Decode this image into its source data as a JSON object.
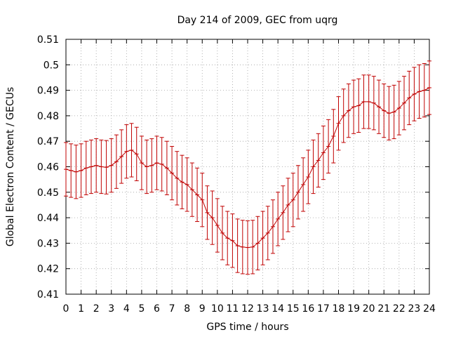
{
  "chart_data": {
    "type": "line",
    "title": "Day 214 of 2009, GEC from uqrg",
    "xlabel": "GPS time / hours",
    "ylabel": "Global Electron Content / GECUs",
    "xlim": [
      0,
      24
    ],
    "ylim": [
      0.41,
      0.51
    ],
    "x_ticks": [
      "0",
      "1",
      "2",
      "3",
      "4",
      "5",
      "6",
      "7",
      "8",
      "9",
      "10",
      "11",
      "12",
      "13",
      "14",
      "15",
      "16",
      "17",
      "18",
      "19",
      "20",
      "21",
      "22",
      "23",
      "24"
    ],
    "y_ticks": [
      "0.41",
      "0.42",
      "0.43",
      "0.44",
      "0.45",
      "0.46",
      "0.47",
      "0.48",
      "0.49",
      "0.5",
      "0.51"
    ],
    "grid": true,
    "series_color": "#c00000",
    "error": 0.0105,
    "x": [
      0,
      0.333,
      0.667,
      1,
      1.333,
      1.667,
      2,
      2.333,
      2.667,
      3,
      3.333,
      3.667,
      4,
      4.333,
      4.667,
      5,
      5.333,
      5.667,
      6,
      6.333,
      6.667,
      7,
      7.333,
      7.667,
      8,
      8.333,
      8.667,
      9,
      9.333,
      9.667,
      10,
      10.333,
      10.667,
      11,
      11.333,
      11.667,
      12,
      12.333,
      12.667,
      13,
      13.333,
      13.667,
      14,
      14.333,
      14.667,
      15,
      15.333,
      15.667,
      16,
      16.333,
      16.667,
      17,
      17.333,
      17.667,
      18,
      18.333,
      18.667,
      19,
      19.333,
      19.667,
      20,
      20.333,
      20.667,
      21,
      21.333,
      21.667,
      22,
      22.333,
      22.667,
      23,
      23.333,
      23.667,
      24
    ],
    "y": [
      0.459,
      0.4585,
      0.458,
      0.4585,
      0.4595,
      0.46,
      0.4605,
      0.46,
      0.4598,
      0.4605,
      0.462,
      0.464,
      0.466,
      0.4665,
      0.465,
      0.4615,
      0.46,
      0.4605,
      0.4615,
      0.461,
      0.4595,
      0.4575,
      0.4555,
      0.454,
      0.453,
      0.451,
      0.449,
      0.447,
      0.442,
      0.44,
      0.437,
      0.434,
      0.432,
      0.431,
      0.429,
      0.4285,
      0.4283,
      0.4285,
      0.43,
      0.432,
      0.434,
      0.4365,
      0.4395,
      0.442,
      0.445,
      0.447,
      0.45,
      0.453,
      0.456,
      0.46,
      0.4625,
      0.4655,
      0.468,
      0.472,
      0.477,
      0.48,
      0.482,
      0.4835,
      0.484,
      0.4855,
      0.4855,
      0.485,
      0.4835,
      0.482,
      0.481,
      0.4815,
      0.483,
      0.485,
      0.487,
      0.4885,
      0.4895,
      0.49,
      0.491
    ]
  }
}
